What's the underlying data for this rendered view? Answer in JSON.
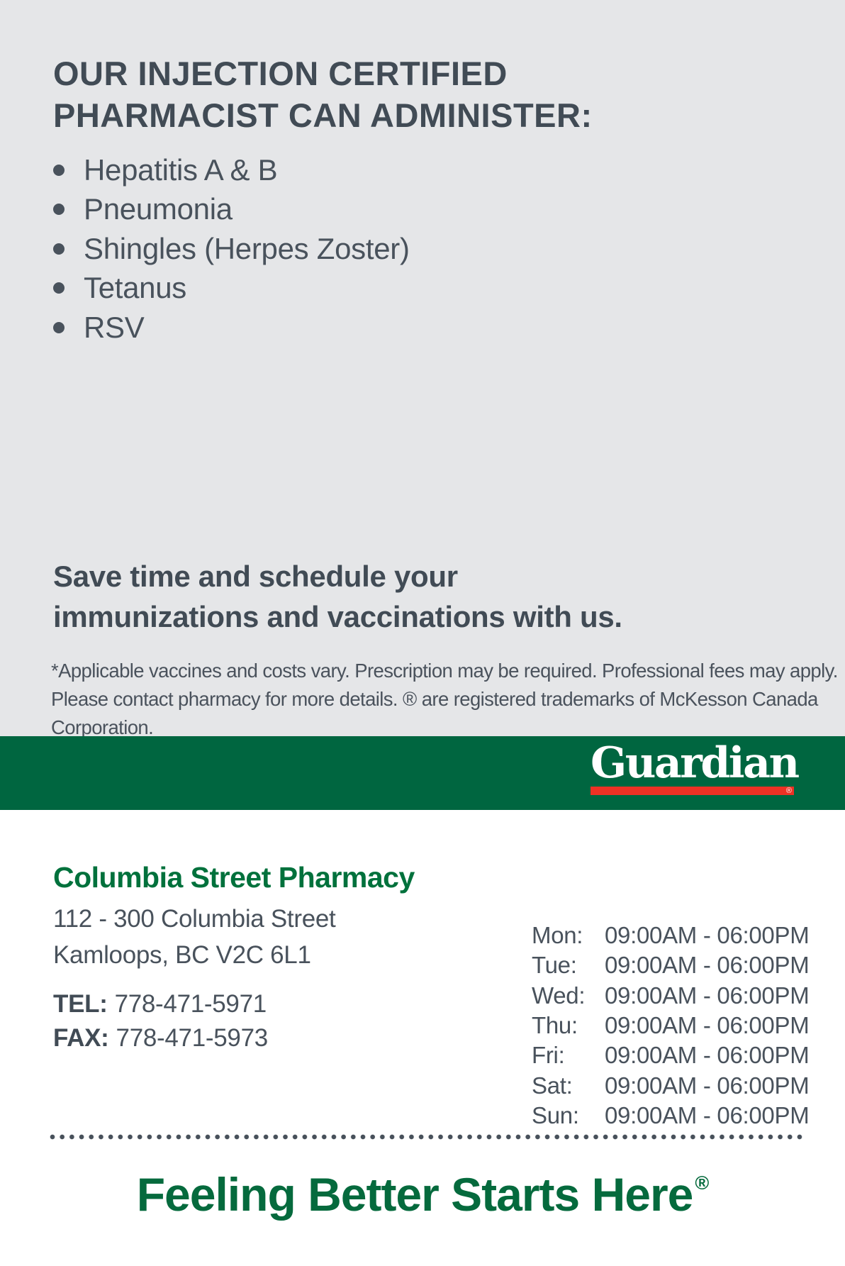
{
  "colors": {
    "brand_green": "#006640",
    "name_green": "#00713c",
    "tagline_green": "#056a3d",
    "accent_red": "#ee3124",
    "slate_text": "#454e58",
    "panel_gray": "#e5e6e8"
  },
  "flyer": {
    "heading_line1": "OUR INJECTION CERTIFIED",
    "heading_line2": "PHARMACIST CAN ADMINISTER:",
    "vaccines": [
      "Hepatitis A & B",
      "Pneumonia",
      "Shingles (Herpes Zoster)",
      "Tetanus",
      "RSV"
    ],
    "cta_line1": "Save time and schedule your",
    "cta_line2": "immunizations and vaccinations with us.",
    "disclaimer_line1": "*Applicable vaccines and costs vary. Prescription may be required. Professional fees may apply.",
    "disclaimer_line2": "Please contact pharmacy for more details. ® are registered trademarks of McKesson Canada Corporation."
  },
  "brand": {
    "logo_text": "Guardian",
    "registered_mark": "®"
  },
  "pharmacy": {
    "name": "Columbia Street Pharmacy",
    "address_line1": "112 - 300 Columbia Street",
    "address_line2": "Kamloops, BC V2C 6L1",
    "tel_label": "TEL:",
    "tel_number": "778-471-5971",
    "fax_label": "FAX:",
    "fax_number": "778-471-5973"
  },
  "hours": {
    "rows": [
      {
        "day": "Mon:",
        "time": "09:00AM - 06:00PM"
      },
      {
        "day": "Tue:",
        "time": "09:00AM - 06:00PM"
      },
      {
        "day": "Wed:",
        "time": "09:00AM - 06:00PM"
      },
      {
        "day": "Thu:",
        "time": "09:00AM - 06:00PM"
      },
      {
        "day": "Fri:",
        "time": "09:00AM - 06:00PM"
      },
      {
        "day": "Sat:",
        "time": "09:00AM - 06:00PM"
      },
      {
        "day": "Sun:",
        "time": "09:00AM - 06:00PM"
      }
    ]
  },
  "tagline": {
    "text": "Feeling Better Starts Here",
    "registered_mark": "®"
  }
}
